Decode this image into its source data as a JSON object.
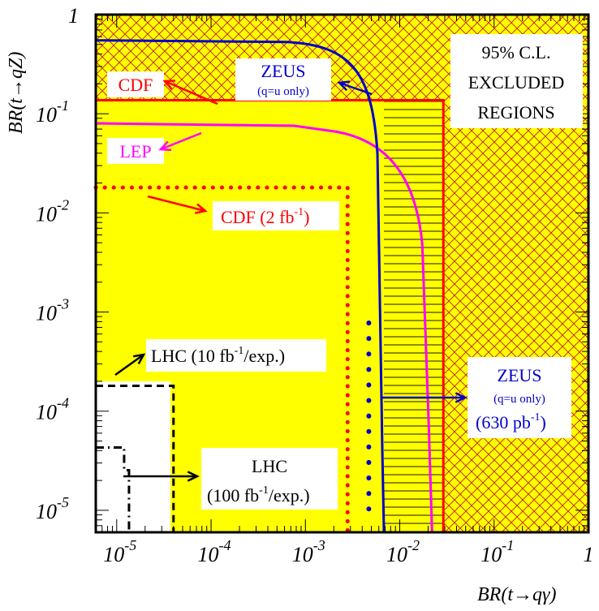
{
  "chart_data": {
    "type": "area",
    "xlabel": "BR(t→qγ)",
    "ylabel": "BR(t→qZ)",
    "x_scale": "log",
    "y_scale": "log",
    "xlim": [
      6e-06,
      1
    ],
    "ylim": [
      6e-06,
      1
    ],
    "x_ticks": [
      {
        "value": 1e-05,
        "base": "10",
        "exp": "-5"
      },
      {
        "value": 0.0001,
        "base": "10",
        "exp": "-4"
      },
      {
        "value": 0.001,
        "base": "10",
        "exp": "-3"
      },
      {
        "value": 0.01,
        "base": "10",
        "exp": "-2"
      },
      {
        "value": 0.1,
        "base": "10",
        "exp": "-1"
      },
      {
        "value": 1,
        "base": "1",
        "exp": ""
      }
    ],
    "y_ticks": [
      {
        "value": 1e-05,
        "base": "10",
        "exp": "-5"
      },
      {
        "value": 0.0001,
        "base": "10",
        "exp": "-4"
      },
      {
        "value": 0.001,
        "base": "10",
        "exp": "-3"
      },
      {
        "value": 0.01,
        "base": "10",
        "exp": "-2"
      },
      {
        "value": 0.1,
        "base": "10",
        "exp": "-1"
      },
      {
        "value": 1,
        "base": "1",
        "exp": ""
      }
    ],
    "regions": [
      {
        "name": "CDF",
        "color": "#ff0000",
        "style": "solid",
        "x_limit": 0.029,
        "y_limit": 0.137
      },
      {
        "name": "LEP",
        "color": "#ff00ff",
        "style": "curve",
        "x_limit": 0.022,
        "y_limit": 0.08
      },
      {
        "name": "ZEUS (q=u only)",
        "color": "#0000cc",
        "style": "curve",
        "x_limit": 0.0068,
        "y_limit": 0.55
      },
      {
        "name": "CDF (2 fb-1)",
        "color": "#ff0000",
        "style": "dotted",
        "x_limit": 0.0028,
        "y_limit": 0.018
      },
      {
        "name": "ZEUS (630 pb-1)",
        "color": "#0000cc",
        "style": "dotted",
        "x_limit": 0.0047
      },
      {
        "name": "LHC (10 fb-1/exp.)",
        "color": "#000000",
        "style": "dashed",
        "x_limit": 4e-05,
        "y_limit": 0.00018
      },
      {
        "name": "LHC (100 fb-1/exp.)",
        "color": "#000000",
        "style": "dash-dot",
        "x_limit": 1.35e-05,
        "y_limit": 4.3e-05
      }
    ]
  },
  "labels": {
    "excluded_line1": "95% C.L.",
    "excluded_line2": "EXCLUDED",
    "excluded_line3": "REGIONS",
    "cdf": "CDF",
    "lep": "LEP",
    "zeus_top": "ZEUS",
    "zeus_top_sub": "(q=u only)",
    "cdf2_text": "CDF (2 fb",
    "cdf2_exp": "-1",
    "cdf2_close": ")",
    "lhc10_text": "LHC (10 fb",
    "lhc10_exp": "-1",
    "lhc10_close": "/exp.)",
    "lhc100_line1": "LHC",
    "lhc100_line2": "(100 fb",
    "lhc100_exp": "-1",
    "lhc100_close": "/exp.)",
    "zeus_right": "ZEUS",
    "zeus_right_sub": "(q=u only)",
    "zeus_right_lumi": "(630 pb",
    "zeus_right_lumi_exp": "-1",
    "zeus_right_lumi_close": ")"
  },
  "colors": {
    "fill": "#ffff00",
    "hatch": "#c00000",
    "hatch_h": "#000000",
    "cdf": "#ff0000",
    "lep": "#ff00ff",
    "zeus": "#0000cc",
    "lhc": "#000000"
  }
}
